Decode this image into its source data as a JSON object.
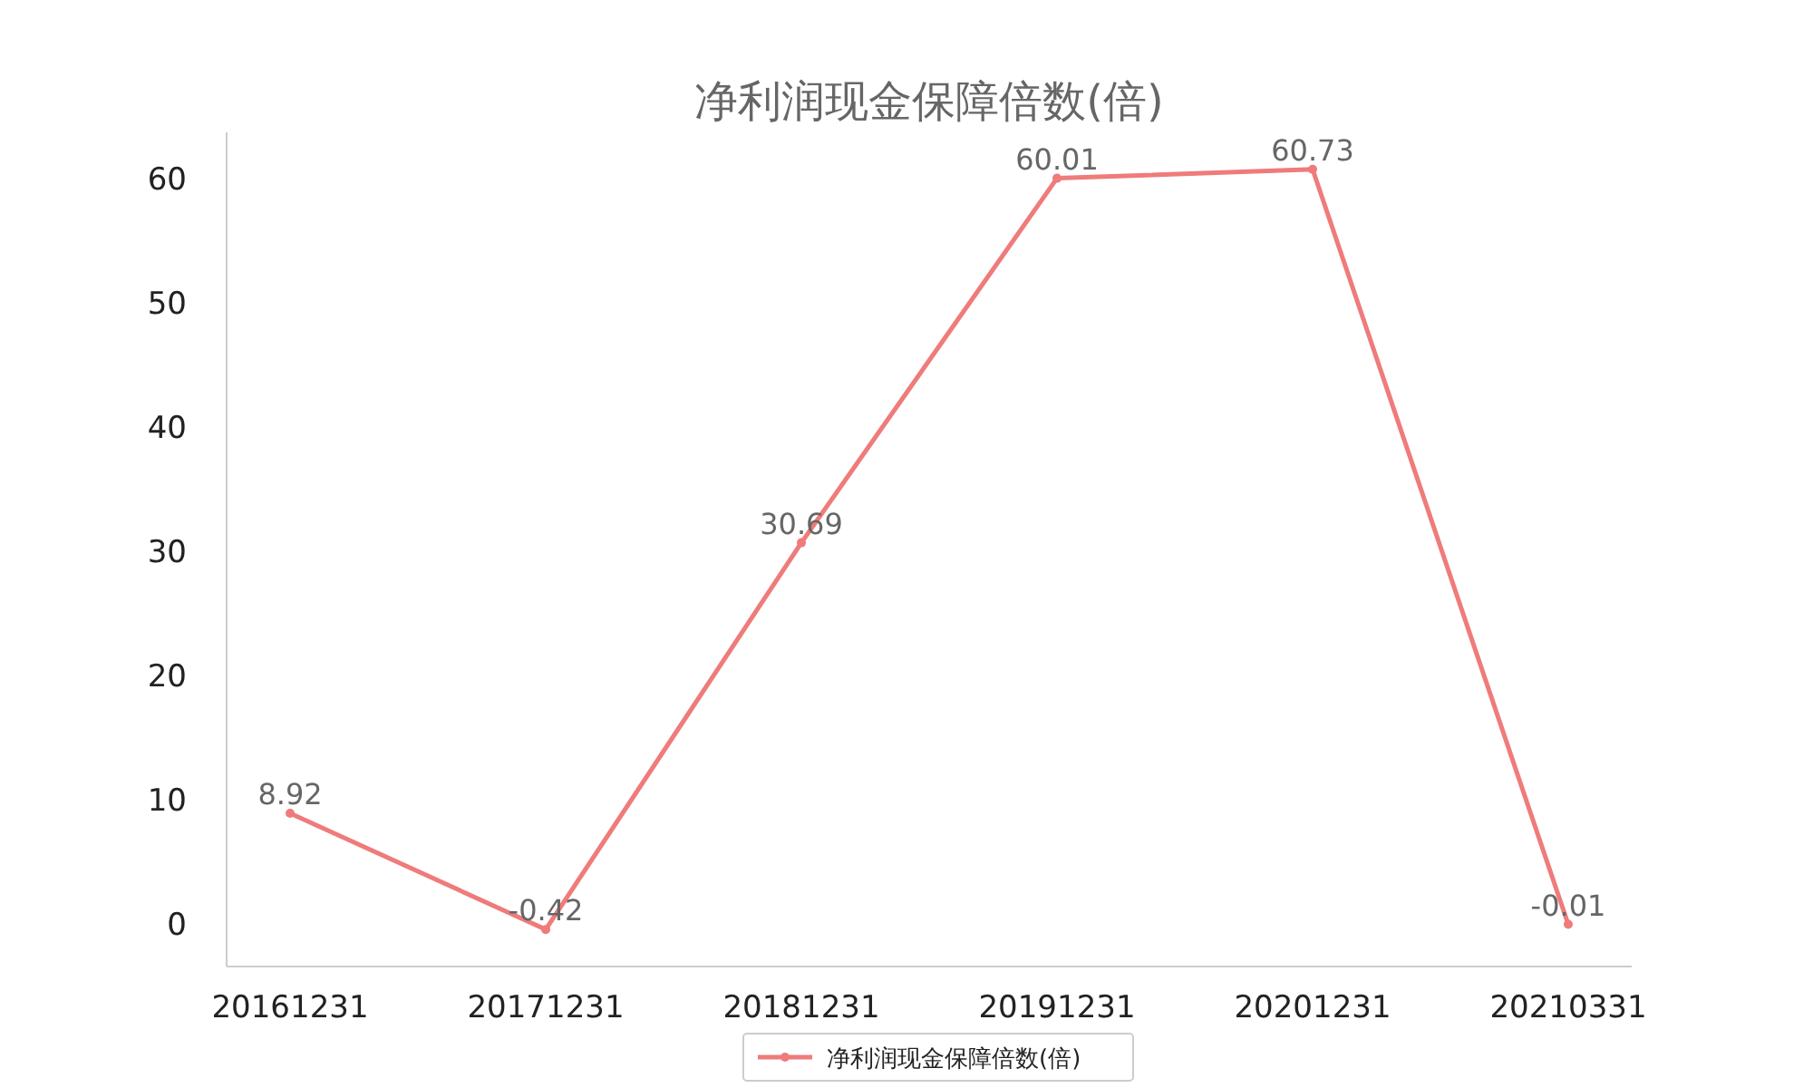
{
  "chart_data": {
    "type": "line",
    "title": "净利润现金保障倍数(倍)",
    "categories": [
      "20161231",
      "20171231",
      "20181231",
      "20191231",
      "20201231",
      "20210331"
    ],
    "series": [
      {
        "name": "净利润现金保障倍数(倍)",
        "color": "#ef7b7b",
        "values": [
          8.92,
          -0.42,
          30.69,
          60.01,
          60.73,
          -0.01
        ]
      }
    ],
    "ylim": [
      -3.4,
      63.7
    ],
    "yticks": [
      0,
      10,
      20,
      30,
      40,
      50,
      60
    ],
    "data_labels": true,
    "marker": "circle",
    "legend": "bottom"
  }
}
